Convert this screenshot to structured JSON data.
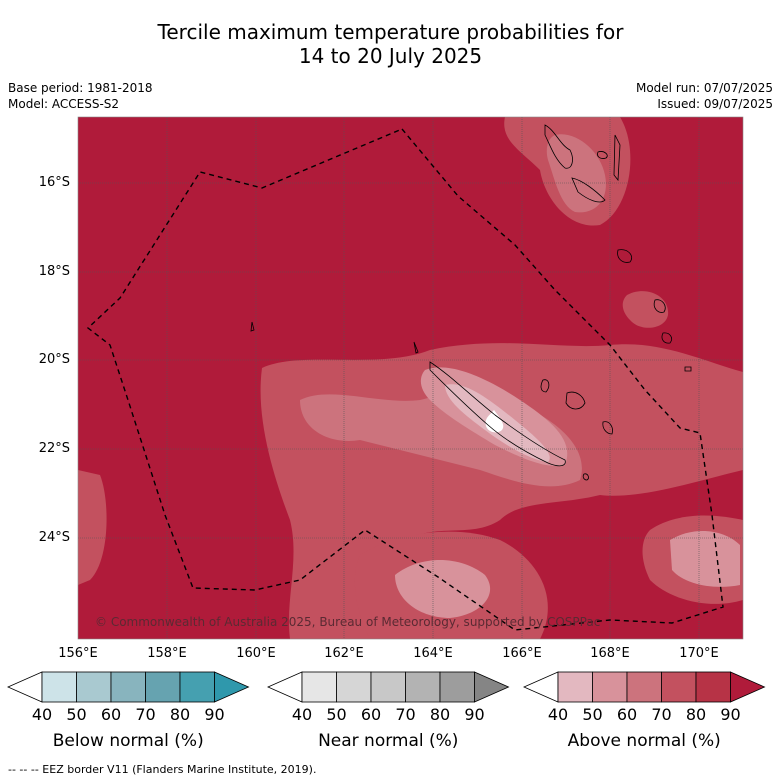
{
  "title_line1": "Tercile maximum temperature probabilities for",
  "title_line2": "14 to 20 July 2025",
  "meta_left": {
    "base_period": "Base period: 1981-2018",
    "model": "Model: ACCESS-S2"
  },
  "meta_right": {
    "model_run": "Model run: 07/07/2025",
    "issued": "Issued: 09/07/2025"
  },
  "lat_labels": [
    "16°S",
    "18°S",
    "20°S",
    "22°S",
    "24°S"
  ],
  "lon_labels": [
    "156°E",
    "158°E",
    "160°E",
    "162°E",
    "164°E",
    "166°E",
    "168°E",
    "170°E"
  ],
  "credit": "© Commonwealth of Australia 2025, Bureau of Meteorology, supported by COSPPac",
  "colorbars": [
    {
      "title": "Below normal (%)",
      "ticks": [
        "40",
        "50",
        "60",
        "70",
        "80",
        "90"
      ],
      "colors": [
        "#cde3e8",
        "#a9c9d0",
        "#88b4be",
        "#66a3b0",
        "#45a0b0",
        "#2f98ac"
      ]
    },
    {
      "title": "Near normal (%)",
      "ticks": [
        "40",
        "50",
        "60",
        "70",
        "80",
        "90"
      ],
      "colors": [
        "#e6e6e6",
        "#d6d6d6",
        "#c8c8c8",
        "#b3b3b3",
        "#9d9d9d",
        "#858585"
      ]
    },
    {
      "title": "Above normal (%)",
      "ticks": [
        "40",
        "50",
        "60",
        "70",
        "80",
        "90"
      ],
      "colors": [
        "#e3b8c0",
        "#d8929b",
        "#cc737d",
        "#c3515f",
        "#b73346",
        "#b01b3a"
      ]
    }
  ],
  "footer": "-- -- -- EEZ border V11 (Flanders Marine Institute, 2019)."
}
